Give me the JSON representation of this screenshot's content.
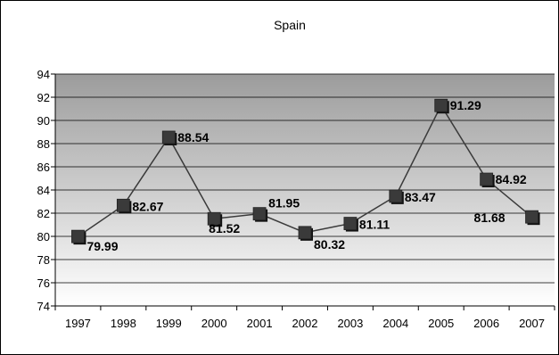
{
  "chart_data": {
    "type": "line",
    "title": "Spain",
    "xlabel": "",
    "ylabel": "",
    "categories": [
      "1997",
      "1998",
      "1999",
      "2000",
      "2001",
      "2002",
      "2003",
      "2004",
      "2005",
      "2006",
      "2007"
    ],
    "series": [
      {
        "values": [
          79.99,
          82.67,
          88.54,
          81.52,
          81.95,
          80.32,
          81.11,
          83.47,
          91.29,
          84.92,
          81.68
        ],
        "labels": [
          "79.99",
          "82.67",
          "88.54",
          "81.52",
          "81.95",
          "80.32",
          "81.11",
          "83.47",
          "91.29",
          "84.92",
          "81.68"
        ]
      }
    ],
    "ylim": [
      74,
      94
    ],
    "yticks": [
      "74",
      "76",
      "78",
      "80",
      "82",
      "84",
      "86",
      "88",
      "90",
      "92",
      "94"
    ],
    "grid": true,
    "legend": "none",
    "colors": {
      "plot_top": "#9c9c9c",
      "plot_bottom": "#ffffff",
      "line": "#3a3a3a",
      "marker": "#3a3a3a",
      "gridline": "#000000"
    }
  }
}
